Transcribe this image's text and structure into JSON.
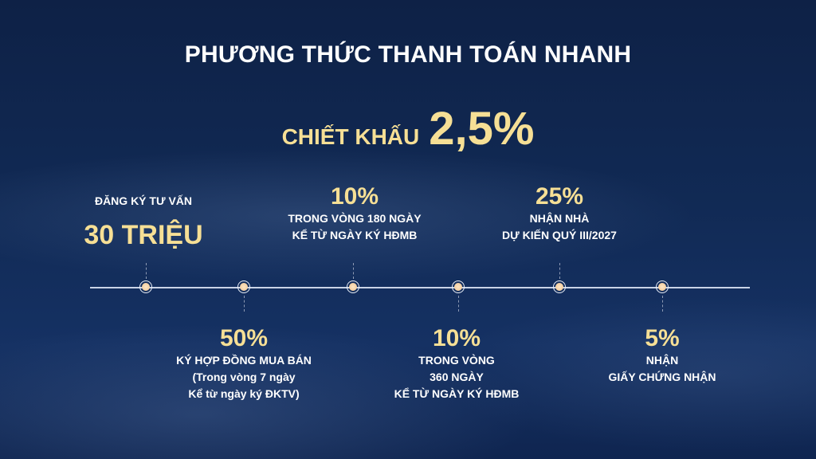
{
  "title": "PHƯƠNG THỨC THANH TOÁN NHANH",
  "discount": {
    "label": "CHIẾT KHẤU",
    "value": "2,5%"
  },
  "colors": {
    "background": "#112a55",
    "gold": "#f6df95",
    "text": "#ffffff"
  },
  "milestones": [
    {
      "position": "above",
      "label": "ĐĂNG KÝ TƯ VẤN",
      "value": "30 TRIỆU"
    },
    {
      "position": "below",
      "value": "50%",
      "lines": [
        "KÝ HỢP ĐỒNG MUA BÁN",
        "(Trong vòng 7 ngày",
        "Kể từ ngày ký ĐKTV)"
      ]
    },
    {
      "position": "above",
      "value": "10%",
      "lines": [
        "TRONG VÒNG 180 NGÀY",
        "KỂ TỪ NGÀY KÝ HĐMB"
      ]
    },
    {
      "position": "below",
      "value": "10%",
      "lines": [
        "TRONG VÒNG",
        "360 NGÀY",
        "KỂ TỪ NGÀY KÝ HĐMB"
      ]
    },
    {
      "position": "above",
      "value": "25%",
      "lines": [
        "NHẬN NHÀ",
        "DỰ KIẾN QUÝ III/2027"
      ]
    },
    {
      "position": "below",
      "value": "5%",
      "lines": [
        "NHẬN",
        "GIẤY CHỨNG NHẬN"
      ]
    }
  ]
}
